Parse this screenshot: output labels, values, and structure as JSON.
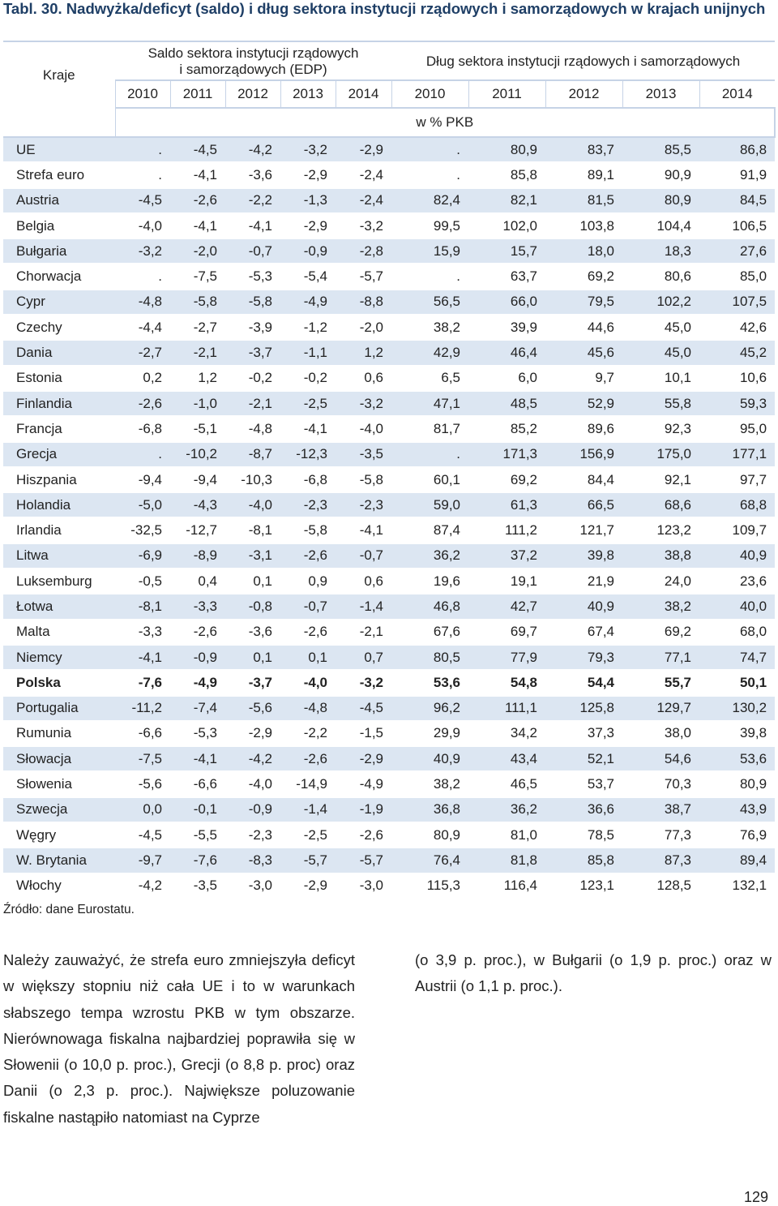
{
  "title": "Tabl. 30. Nadwyżka/deficyt (saldo) i dług sektora instytucji rządowych i samorządowych w krajach unijnych",
  "header": {
    "kraje": "Kraje",
    "saldo_line1": "Saldo sektora instytucji rządowych",
    "saldo_line2": "i samorządowych (EDP)",
    "dlug": "Dług sektora instytucji rządowych i samorządowych",
    "years_saldo": [
      "2010",
      "2011",
      "2012",
      "2013",
      "2014"
    ],
    "years_dlug": [
      "2010",
      "2011",
      "2012",
      "2013",
      "2014"
    ],
    "unit": "w % PKB"
  },
  "rows": [
    {
      "name": "UE",
      "v": [
        ".",
        "-4,5",
        "-4,2",
        "-3,2",
        "-2,9",
        ".",
        "80,9",
        "83,7",
        "85,5",
        "86,8"
      ]
    },
    {
      "name": "Strefa euro",
      "v": [
        ".",
        "-4,1",
        "-3,6",
        "-2,9",
        "-2,4",
        ".",
        "85,8",
        "89,1",
        "90,9",
        "91,9"
      ]
    },
    {
      "name": "Austria",
      "v": [
        "-4,5",
        "-2,6",
        "-2,2",
        "-1,3",
        "-2,4",
        "82,4",
        "82,1",
        "81,5",
        "80,9",
        "84,5"
      ]
    },
    {
      "name": "Belgia",
      "v": [
        "-4,0",
        "-4,1",
        "-4,1",
        "-2,9",
        "-3,2",
        "99,5",
        "102,0",
        "103,8",
        "104,4",
        "106,5"
      ]
    },
    {
      "name": "Bułgaria",
      "v": [
        "-3,2",
        "-2,0",
        "-0,7",
        "-0,9",
        "-2,8",
        "15,9",
        "15,7",
        "18,0",
        "18,3",
        "27,6"
      ]
    },
    {
      "name": "Chorwacja",
      "v": [
        ".",
        "-7,5",
        "-5,3",
        "-5,4",
        "-5,7",
        ".",
        "63,7",
        "69,2",
        "80,6",
        "85,0"
      ]
    },
    {
      "name": "Cypr",
      "v": [
        "-4,8",
        "-5,8",
        "-5,8",
        "-4,9",
        "-8,8",
        "56,5",
        "66,0",
        "79,5",
        "102,2",
        "107,5"
      ]
    },
    {
      "name": "Czechy",
      "v": [
        "-4,4",
        "-2,7",
        "-3,9",
        "-1,2",
        "-2,0",
        "38,2",
        "39,9",
        "44,6",
        "45,0",
        "42,6"
      ]
    },
    {
      "name": "Dania",
      "v": [
        "-2,7",
        "-2,1",
        "-3,7",
        "-1,1",
        "1,2",
        "42,9",
        "46,4",
        "45,6",
        "45,0",
        "45,2"
      ]
    },
    {
      "name": "Estonia",
      "v": [
        "0,2",
        "1,2",
        "-0,2",
        "-0,2",
        "0,6",
        "6,5",
        "6,0",
        "9,7",
        "10,1",
        "10,6"
      ]
    },
    {
      "name": "Finlandia",
      "v": [
        "-2,6",
        "-1,0",
        "-2,1",
        "-2,5",
        "-3,2",
        "47,1",
        "48,5",
        "52,9",
        "55,8",
        "59,3"
      ]
    },
    {
      "name": "Francja",
      "v": [
        "-6,8",
        "-5,1",
        "-4,8",
        "-4,1",
        "-4,0",
        "81,7",
        "85,2",
        "89,6",
        "92,3",
        "95,0"
      ]
    },
    {
      "name": "Grecja",
      "v": [
        ".",
        "-10,2",
        "-8,7",
        "-12,3",
        "-3,5",
        ".",
        "171,3",
        "156,9",
        "175,0",
        "177,1"
      ]
    },
    {
      "name": "Hiszpania",
      "v": [
        "-9,4",
        "-9,4",
        "-10,3",
        "-6,8",
        "-5,8",
        "60,1",
        "69,2",
        "84,4",
        "92,1",
        "97,7"
      ]
    },
    {
      "name": "Holandia",
      "v": [
        "-5,0",
        "-4,3",
        "-4,0",
        "-2,3",
        "-2,3",
        "59,0",
        "61,3",
        "66,5",
        "68,6",
        "68,8"
      ]
    },
    {
      "name": "Irlandia",
      "v": [
        "-32,5",
        "-12,7",
        "-8,1",
        "-5,8",
        "-4,1",
        "87,4",
        "111,2",
        "121,7",
        "123,2",
        "109,7"
      ]
    },
    {
      "name": "Litwa",
      "v": [
        "-6,9",
        "-8,9",
        "-3,1",
        "-2,6",
        "-0,7",
        "36,2",
        "37,2",
        "39,8",
        "38,8",
        "40,9"
      ]
    },
    {
      "name": "Luksemburg",
      "v": [
        "-0,5",
        "0,4",
        "0,1",
        "0,9",
        "0,6",
        "19,6",
        "19,1",
        "21,9",
        "24,0",
        "23,6"
      ]
    },
    {
      "name": "Łotwa",
      "v": [
        "-8,1",
        "-3,3",
        "-0,8",
        "-0,7",
        "-1,4",
        "46,8",
        "42,7",
        "40,9",
        "38,2",
        "40,0"
      ]
    },
    {
      "name": "Malta",
      "v": [
        "-3,3",
        "-2,6",
        "-3,6",
        "-2,6",
        "-2,1",
        "67,6",
        "69,7",
        "67,4",
        "69,2",
        "68,0"
      ]
    },
    {
      "name": "Niemcy",
      "v": [
        "-4,1",
        "-0,9",
        "0,1",
        "0,1",
        "0,7",
        "80,5",
        "77,9",
        "79,3",
        "77,1",
        "74,7"
      ]
    },
    {
      "name": "Polska",
      "bold": true,
      "v": [
        "-7,6",
        "-4,9",
        "-3,7",
        "-4,0",
        "-3,2",
        "53,6",
        "54,8",
        "54,4",
        "55,7",
        "50,1"
      ]
    },
    {
      "name": "Portugalia",
      "v": [
        "-11,2",
        "-7,4",
        "-5,6",
        "-4,8",
        "-4,5",
        "96,2",
        "111,1",
        "125,8",
        "129,7",
        "130,2"
      ]
    },
    {
      "name": "Rumunia",
      "v": [
        "-6,6",
        "-5,3",
        "-2,9",
        "-2,2",
        "-1,5",
        "29,9",
        "34,2",
        "37,3",
        "38,0",
        "39,8"
      ]
    },
    {
      "name": "Słowacja",
      "v": [
        "-7,5",
        "-4,1",
        "-4,2",
        "-2,6",
        "-2,9",
        "40,9",
        "43,4",
        "52,1",
        "54,6",
        "53,6"
      ]
    },
    {
      "name": "Słowenia",
      "v": [
        "-5,6",
        "-6,6",
        "-4,0",
        "-14,9",
        "-4,9",
        "38,2",
        "46,5",
        "53,7",
        "70,3",
        "80,9"
      ]
    },
    {
      "name": "Szwecja",
      "v": [
        "0,0",
        "-0,1",
        "-0,9",
        "-1,4",
        "-1,9",
        "36,8",
        "36,2",
        "36,6",
        "38,7",
        "43,9"
      ]
    },
    {
      "name": "Węgry",
      "v": [
        "-4,5",
        "-5,5",
        "-2,3",
        "-2,5",
        "-2,6",
        "80,9",
        "81,0",
        "78,5",
        "77,3",
        "76,9"
      ]
    },
    {
      "name": "W. Brytania",
      "v": [
        "-9,7",
        "-7,6",
        "-8,3",
        "-5,7",
        "-5,7",
        "76,4",
        "81,8",
        "85,8",
        "87,3",
        "89,4"
      ]
    },
    {
      "name": "Włochy",
      "v": [
        "-4,2",
        "-3,5",
        "-3,0",
        "-2,9",
        "-3,0",
        "115,3",
        "116,4",
        "123,1",
        "128,5",
        "132,1"
      ]
    }
  ],
  "source": "Źródło: dane Eurostatu.",
  "paragraph_left": "Należy zauważyć, że strefa euro zmniejszyła deficyt w większy stopniu niż cała UE i to w warunkach słabszego tempa wzrostu PKB w tym obszarze. Nierównowaga fiskalna najbardziej poprawiła się w Słowenii (o 10,0 p. proc.), Grecji (o 8,8 p. proc) oraz Danii (o 2,3 p. proc.). Największe poluzowanie fiskalne nastąpiło natomiast na Cyprze",
  "paragraph_right": "(o 3,9 p. proc.), w Bułgarii (o 1,9 p. proc.) oraz w Austrii (o 1,1 p. proc.).",
  "page_number": "129"
}
